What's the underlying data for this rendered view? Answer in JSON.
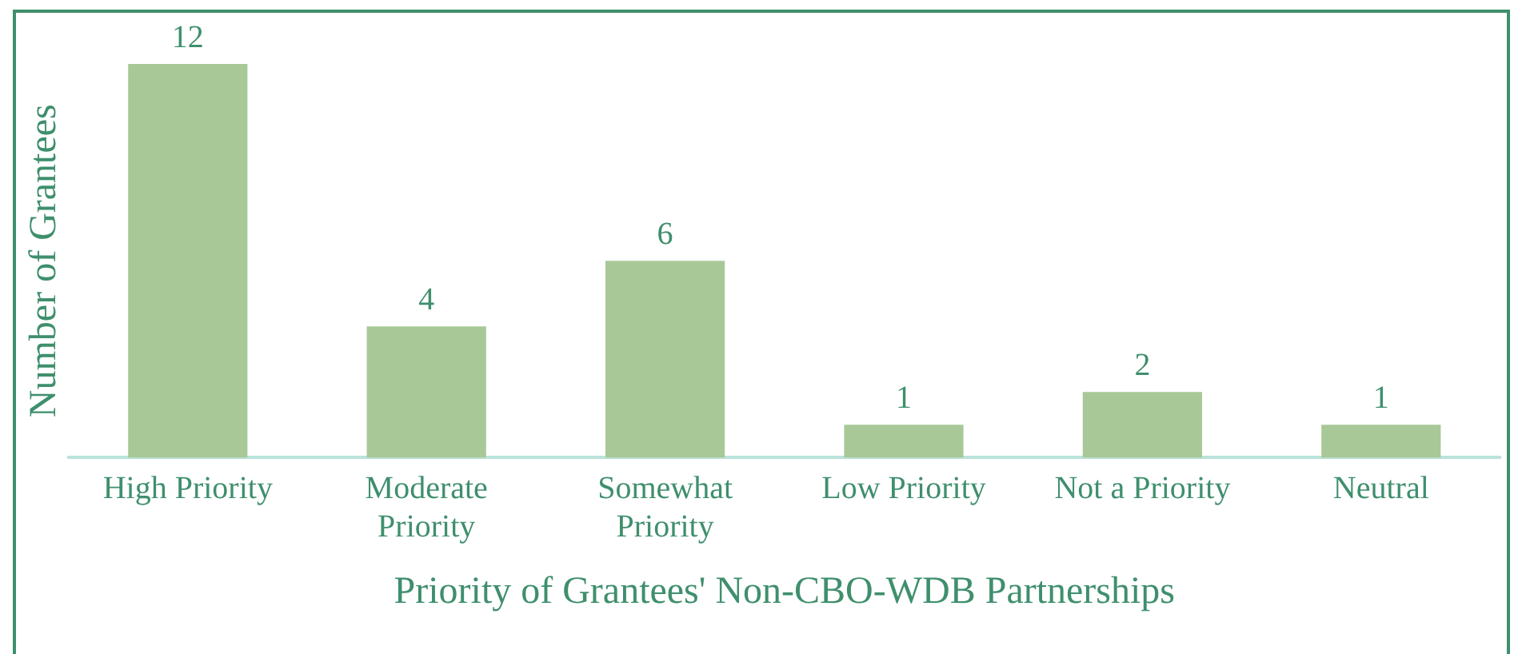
{
  "chart_data": {
    "type": "bar",
    "xlabel": "Priority of Grantees' Non-CBO-WDB Partnerships",
    "ylabel": "Number of Grantees",
    "categories": [
      "High Priority",
      "Moderate Priority",
      "Somewhat Priority",
      "Low Priority",
      "Not a Priority",
      "Neutral"
    ],
    "values": [
      12,
      4,
      6,
      1,
      2,
      1
    ],
    "color": "#a9c897",
    "data_labels": true,
    "grid": false,
    "legend": false
  }
}
